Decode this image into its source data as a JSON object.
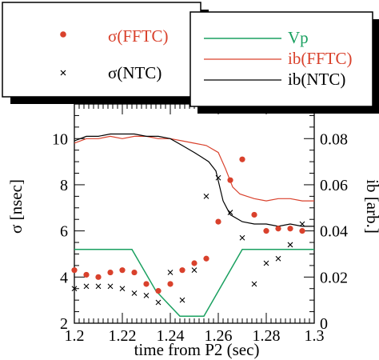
{
  "chart_data": {
    "type": "line",
    "xlabel": "time from P2 (sec)",
    "ylabel_left": "σ [nsec]",
    "ylabel_right": "ib [arb.]",
    "xlim": [
      1.2,
      1.3
    ],
    "ylim_left": [
      2,
      11.5
    ],
    "ylim_right": [
      0,
      0.095
    ],
    "x_ticks": [
      "1.2",
      "1.22",
      "1.24",
      "1.26",
      "1.28",
      "1.3"
    ],
    "x_tick_values": [
      1.2,
      1.22,
      1.24,
      1.26,
      1.28,
      1.3
    ],
    "y_left_ticks": [
      "2",
      "4",
      "6",
      "8",
      "10"
    ],
    "y_left_tick_values": [
      2,
      4,
      6,
      8,
      10
    ],
    "y_right_ticks": [
      "0",
      "0.02",
      "0.04",
      "0.06",
      "0.08"
    ],
    "y_right_tick_values": [
      0,
      0.02,
      0.04,
      0.06,
      0.08
    ],
    "legend_left": {
      "entries": [
        {
          "label": "σ(FFTC)",
          "marker": "dot",
          "color": "#d9412c"
        },
        {
          "label": "σ(NTC)",
          "marker": "x",
          "color": "#000000"
        }
      ]
    },
    "legend_right": {
      "entries": [
        {
          "label": "Vp",
          "color": "#1aa060"
        },
        {
          "label": "ib(FFTC)",
          "color": "#d9412c"
        },
        {
          "label": "ib(NTC)",
          "color": "#000000"
        }
      ]
    },
    "series": [
      {
        "name": "σ(FFTC)",
        "axis": "left",
        "kind": "scatter",
        "marker": "dot",
        "color": "#d9412c",
        "x": [
          1.2,
          1.205,
          1.21,
          1.215,
          1.22,
          1.225,
          1.23,
          1.235,
          1.24,
          1.245,
          1.25,
          1.255,
          1.26,
          1.265,
          1.27,
          1.275,
          1.28,
          1.285,
          1.29,
          1.295
        ],
        "y": [
          4.3,
          4.1,
          4.0,
          4.2,
          4.3,
          4.2,
          3.7,
          3.4,
          3.7,
          4.3,
          4.6,
          4.8,
          6.4,
          8.2,
          9.1,
          6.7,
          6.0,
          6.1,
          6.1,
          6.0
        ]
      },
      {
        "name": "σ(NTC)",
        "axis": "left",
        "kind": "scatter",
        "marker": "x",
        "color": "#000000",
        "x": [
          1.2,
          1.205,
          1.21,
          1.215,
          1.22,
          1.225,
          1.23,
          1.235,
          1.24,
          1.245,
          1.25,
          1.255,
          1.26,
          1.265,
          1.27,
          1.275,
          1.28,
          1.285,
          1.29,
          1.295
        ],
        "y": [
          3.5,
          3.6,
          3.6,
          3.6,
          3.5,
          3.3,
          3.2,
          2.9,
          4.2,
          3.0,
          4.3,
          7.5,
          8.3,
          6.8,
          5.7,
          3.7,
          4.6,
          4.8,
          5.4,
          6.3
        ]
      },
      {
        "name": "Vp",
        "axis": "right",
        "kind": "line",
        "color": "#1aa060",
        "x": [
          1.2,
          1.224,
          1.234,
          1.244,
          1.254,
          1.27,
          1.3
        ],
        "y": [
          0.032,
          0.032,
          0.014,
          0.003,
          0.003,
          0.032,
          0.032
        ]
      },
      {
        "name": "ib(FFTC)",
        "axis": "right",
        "kind": "line",
        "color": "#d9412c",
        "x": [
          1.2,
          1.205,
          1.21,
          1.215,
          1.22,
          1.225,
          1.23,
          1.235,
          1.24,
          1.245,
          1.25,
          1.255,
          1.26,
          1.263,
          1.266,
          1.269,
          1.272,
          1.275,
          1.28,
          1.285,
          1.29,
          1.295,
          1.3
        ],
        "y": [
          0.078,
          0.08,
          0.08,
          0.081,
          0.08,
          0.081,
          0.081,
          0.08,
          0.08,
          0.079,
          0.078,
          0.077,
          0.074,
          0.067,
          0.059,
          0.056,
          0.055,
          0.054,
          0.053,
          0.054,
          0.054,
          0.053,
          0.053
        ]
      },
      {
        "name": "ib(NTC)",
        "axis": "right",
        "kind": "line",
        "color": "#000000",
        "x": [
          1.2,
          1.205,
          1.21,
          1.215,
          1.22,
          1.225,
          1.23,
          1.235,
          1.24,
          1.245,
          1.25,
          1.253,
          1.256,
          1.259,
          1.262,
          1.265,
          1.27,
          1.275,
          1.28,
          1.285,
          1.29,
          1.295,
          1.3
        ],
        "y": [
          0.079,
          0.081,
          0.081,
          0.082,
          0.082,
          0.082,
          0.081,
          0.081,
          0.08,
          0.077,
          0.074,
          0.072,
          0.07,
          0.066,
          0.053,
          0.047,
          0.044,
          0.043,
          0.043,
          0.042,
          0.043,
          0.042,
          0.042
        ]
      }
    ]
  }
}
